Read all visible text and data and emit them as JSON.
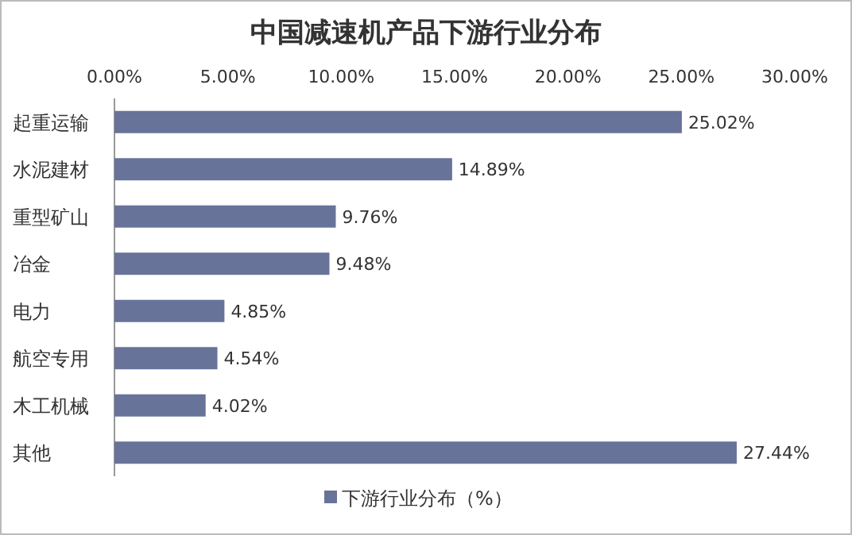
{
  "chart_data": {
    "type": "bar",
    "orientation": "horizontal",
    "title": "中国减速机产品下游行业分布",
    "categories": [
      "起重运输",
      "水泥建材",
      "重型矿山",
      "冶金",
      "电力",
      "航空专用",
      "木工机械",
      "其他"
    ],
    "series": [
      {
        "name": "下游行业分布（%）",
        "color": "#68739a",
        "values": [
          25.02,
          14.89,
          9.76,
          9.48,
          4.85,
          4.54,
          4.02,
          27.44
        ],
        "value_labels": [
          "25.02%",
          "14.89%",
          "9.76%",
          "9.48%",
          "4.85%",
          "4.54%",
          "4.02%",
          "27.44%"
        ]
      }
    ],
    "xlim": [
      0,
      30
    ],
    "xticks": [
      {
        "value": 0,
        "label": "0.00%"
      },
      {
        "value": 5,
        "label": "5.00%"
      },
      {
        "value": 10,
        "label": "10.00%"
      },
      {
        "value": 15,
        "label": "15.00%"
      },
      {
        "value": 20,
        "label": "20.00%"
      },
      {
        "value": 25,
        "label": "25.00%"
      },
      {
        "value": 30,
        "label": "30.00%"
      }
    ],
    "legend": "bottom",
    "grid": false
  }
}
